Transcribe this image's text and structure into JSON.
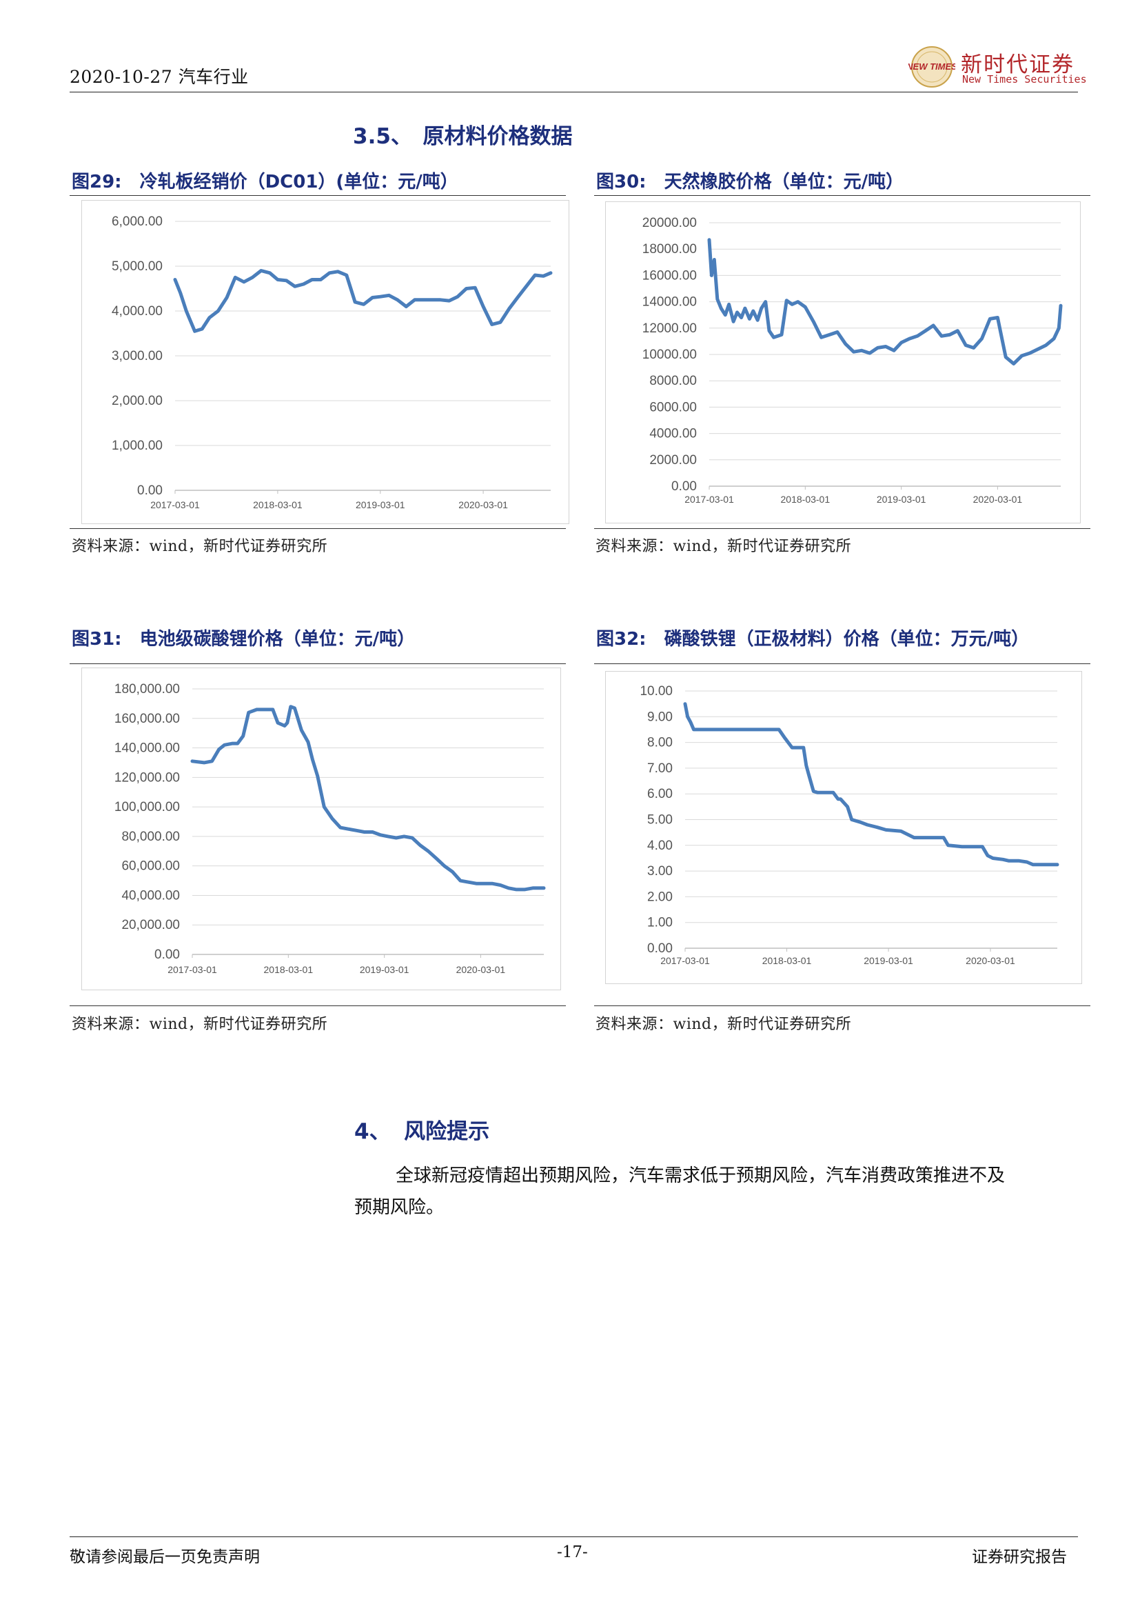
{
  "header": {
    "date_industry": "2020-10-27 汽车行业",
    "logo_name": "新时代证券",
    "logo_sub": "New Times Securities",
    "logo_mark": "NEW TIMES"
  },
  "section_35": {
    "num": "3.5、",
    "title": "原材料价格数据"
  },
  "fig29": {
    "title": "图29:　冷轧板经销价（DC01）(单位：元/吨）",
    "source": "资料来源：wind，新时代证券研究所"
  },
  "fig30": {
    "title": "图30:　天然橡胶价格（单位：元/吨）",
    "source": "资料来源：wind，新时代证券研究所"
  },
  "fig31": {
    "title": "图31:　电池级碳酸锂价格（单位：元/吨）",
    "source": "资料来源：wind，新时代证券研究所"
  },
  "fig32": {
    "title": "图32:　磷酸铁锂（正极材料）价格（单位：万元/吨）",
    "source": "资料来源：wind，新时代证券研究所"
  },
  "section_4": {
    "num": "4、",
    "title": "风险提示",
    "para_line1": "全球新冠疫情超出预期风险，汽车需求低于预期风险，汽车消费政策推进不及",
    "para_line2": "预期风险。"
  },
  "footer": {
    "left": "敬请参阅最后一页免责声明",
    "page": "-17-",
    "right": "证券研究报告"
  },
  "chart_data": [
    {
      "id": "fig29",
      "type": "line",
      "color": "#4a7ebb",
      "x_ticks": [
        "2017-03-01",
        "2018-03-01",
        "2019-03-01",
        "2020-03-01"
      ],
      "x_range": [
        "2017-03-01",
        "2020-10-27"
      ],
      "y_ticks": [
        "0.00",
        "1,000.00",
        "2,000.00",
        "3,000.00",
        "4,000.00",
        "5,000.00",
        "6,000.00"
      ],
      "ylim": [
        0,
        6000
      ],
      "grid": true,
      "series": [
        {
          "x": [
            "2017-03-01",
            "2017-03-20",
            "2017-04-10",
            "2017-05-10",
            "2017-06-05",
            "2017-07-01",
            "2017-08-01",
            "2017-09-01",
            "2017-10-01",
            "2017-11-01",
            "2017-12-01",
            "2018-01-01",
            "2018-02-01",
            "2018-03-01",
            "2018-04-01",
            "2018-05-01",
            "2018-06-01",
            "2018-07-01",
            "2018-08-01",
            "2018-09-01",
            "2018-10-01",
            "2018-11-01",
            "2018-12-01",
            "2019-01-01",
            "2019-02-01",
            "2019-03-01",
            "2019-04-01",
            "2019-05-01",
            "2019-06-01",
            "2019-07-01",
            "2019-08-01",
            "2019-09-01",
            "2019-10-01",
            "2019-11-01",
            "2019-12-01",
            "2020-01-01",
            "2020-02-01",
            "2020-03-01",
            "2020-04-01",
            "2020-05-01",
            "2020-06-01",
            "2020-07-01",
            "2020-08-01",
            "2020-09-01",
            "2020-10-01",
            "2020-10-27"
          ],
          "values": [
            4700,
            4400,
            4000,
            3550,
            3600,
            3850,
            4000,
            4300,
            4750,
            4650,
            4750,
            4900,
            4850,
            4700,
            4680,
            4550,
            4600,
            4700,
            4700,
            4850,
            4880,
            4800,
            4200,
            4150,
            4300,
            4320,
            4350,
            4250,
            4100,
            4250,
            4250,
            4250,
            4250,
            4230,
            4320,
            4500,
            4520,
            4100,
            3700,
            3750,
            4050,
            4300,
            4550,
            4800,
            4780,
            4850
          ]
        }
      ]
    },
    {
      "id": "fig30",
      "type": "line",
      "color": "#4a7ebb",
      "x_ticks": [
        "2017-03-01",
        "2018-03-01",
        "2019-03-01",
        "2020-03-01"
      ],
      "x_range": [
        "2017-03-01",
        "2020-10-27"
      ],
      "y_ticks": [
        "0.00",
        "2000.00",
        "4000.00",
        "6000.00",
        "8000.00",
        "10000.00",
        "12000.00",
        "14000.00",
        "16000.00",
        "18000.00",
        "20000.00"
      ],
      "ylim": [
        0,
        20000
      ],
      "grid": true,
      "series": [
        {
          "x": [
            "2017-03-01",
            "2017-03-10",
            "2017-03-20",
            "2017-04-01",
            "2017-04-15",
            "2017-05-01",
            "2017-05-15",
            "2017-06-01",
            "2017-06-15",
            "2017-07-01",
            "2017-07-15",
            "2017-08-01",
            "2017-08-15",
            "2017-09-01",
            "2017-09-15",
            "2017-10-01",
            "2017-10-15",
            "2017-11-01",
            "2017-12-01",
            "2017-12-20",
            "2018-01-10",
            "2018-02-01",
            "2018-03-01",
            "2018-04-01",
            "2018-05-01",
            "2018-06-01",
            "2018-07-01",
            "2018-08-01",
            "2018-09-01",
            "2018-10-01",
            "2018-11-01",
            "2018-12-01",
            "2019-01-01",
            "2019-02-01",
            "2019-03-01",
            "2019-04-01",
            "2019-05-01",
            "2019-06-01",
            "2019-07-01",
            "2019-08-01",
            "2019-09-01",
            "2019-10-01",
            "2019-11-01",
            "2019-12-01",
            "2020-01-01",
            "2020-02-01",
            "2020-03-01",
            "2020-04-01",
            "2020-05-01",
            "2020-06-01",
            "2020-07-01",
            "2020-08-01",
            "2020-09-01",
            "2020-10-01",
            "2020-10-20",
            "2020-10-27"
          ],
          "values": [
            18700,
            16000,
            17200,
            14200,
            13500,
            13000,
            13800,
            12500,
            13200,
            12800,
            13500,
            12700,
            13300,
            12600,
            13500,
            14000,
            11800,
            11300,
            11500,
            14100,
            13800,
            14000,
            13600,
            12500,
            11300,
            11500,
            11700,
            10800,
            10200,
            10300,
            10100,
            10500,
            10600,
            10300,
            10900,
            11200,
            11400,
            11800,
            12200,
            11400,
            11500,
            11800,
            10700,
            10500,
            11200,
            12700,
            12800,
            9800,
            9300,
            9900,
            10100,
            10400,
            10700,
            11200,
            12000,
            13700
          ]
        }
      ]
    },
    {
      "id": "fig31",
      "type": "line",
      "color": "#4a7ebb",
      "x_ticks": [
        "2017-03-01",
        "2018-03-01",
        "2019-03-01",
        "2020-03-01"
      ],
      "x_range": [
        "2017-03-01",
        "2020-10-27"
      ],
      "y_ticks": [
        "0.00",
        "20,000.00",
        "40,000.00",
        "60,000.00",
        "80,000.00",
        "100,000.00",
        "120,000.00",
        "140,000.00",
        "160,000.00",
        "180,000.00"
      ],
      "ylim": [
        0,
        180000
      ],
      "grid": true,
      "series": [
        {
          "x": [
            "2017-03-01",
            "2017-04-15",
            "2017-05-15",
            "2017-06-10",
            "2017-07-01",
            "2017-08-01",
            "2017-08-20",
            "2017-09-10",
            "2017-10-01",
            "2017-11-01",
            "2017-12-01",
            "2018-01-01",
            "2018-01-20",
            "2018-02-15",
            "2018-02-25",
            "2018-03-10",
            "2018-03-25",
            "2018-04-20",
            "2018-05-15",
            "2018-06-01",
            "2018-06-20",
            "2018-07-15",
            "2018-08-15",
            "2018-09-15",
            "2018-10-15",
            "2018-11-15",
            "2018-12-15",
            "2019-01-15",
            "2019-02-15",
            "2019-03-15",
            "2019-04-15",
            "2019-05-15",
            "2019-06-15",
            "2019-07-15",
            "2019-08-15",
            "2019-09-15",
            "2019-10-15",
            "2019-11-15",
            "2019-12-15",
            "2020-01-15",
            "2020-02-15",
            "2020-03-15",
            "2020-04-15",
            "2020-05-15",
            "2020-06-15",
            "2020-07-15",
            "2020-08-15",
            "2020-09-15",
            "2020-10-27"
          ],
          "values": [
            131000,
            130000,
            131000,
            139000,
            142000,
            143000,
            143000,
            148000,
            164000,
            166000,
            166000,
            166000,
            157000,
            155000,
            157000,
            168000,
            167000,
            152000,
            144000,
            132000,
            121000,
            100000,
            92000,
            86000,
            85000,
            84000,
            83000,
            83000,
            81000,
            80000,
            79000,
            80000,
            79000,
            74000,
            70000,
            65000,
            60000,
            56000,
            50000,
            49000,
            48000,
            48000,
            48000,
            47000,
            45000,
            44000,
            44000,
            45000,
            45000
          ]
        }
      ]
    },
    {
      "id": "fig32",
      "type": "line",
      "color": "#4a7ebb",
      "x_ticks": [
        "2017-03-01",
        "2018-03-01",
        "2019-03-01",
        "2020-03-01"
      ],
      "x_range": [
        "2017-03-01",
        "2020-10-27"
      ],
      "y_ticks": [
        "0.00",
        "1.00",
        "2.00",
        "3.00",
        "4.00",
        "5.00",
        "6.00",
        "7.00",
        "8.00",
        "9.00",
        "10.00"
      ],
      "ylim": [
        0,
        10
      ],
      "grid": true,
      "series": [
        {
          "x": [
            "2017-03-01",
            "2017-03-10",
            "2017-03-20",
            "2017-04-01",
            "2018-02-01",
            "2018-02-20",
            "2018-03-20",
            "2018-04-15",
            "2018-04-30",
            "2018-05-10",
            "2018-05-20",
            "2018-06-05",
            "2018-06-20",
            "2018-08-15",
            "2018-09-01",
            "2018-09-10",
            "2018-10-05",
            "2018-10-20",
            "2018-11-20",
            "2018-12-15",
            "2019-01-20",
            "2019-02-20",
            "2019-04-15",
            "2019-06-01",
            "2019-07-15",
            "2019-08-01",
            "2019-09-15",
            "2019-10-01",
            "2019-11-20",
            "2020-01-01",
            "2020-01-15",
            "2020-02-01",
            "2020-02-20",
            "2020-03-10",
            "2020-04-15",
            "2020-05-05",
            "2020-05-20",
            "2020-06-10",
            "2020-07-10",
            "2020-08-01",
            "2020-10-27"
          ],
          "values": [
            9.5,
            9.0,
            8.8,
            8.5,
            8.5,
            8.2,
            7.8,
            7.8,
            7.8,
            7.1,
            6.7,
            6.1,
            6.05,
            6.05,
            5.8,
            5.8,
            5.5,
            5.0,
            4.9,
            4.8,
            4.7,
            4.6,
            4.55,
            4.3,
            4.3,
            4.3,
            4.3,
            4.0,
            3.95,
            3.95,
            3.95,
            3.95,
            3.6,
            3.5,
            3.45,
            3.4,
            3.4,
            3.4,
            3.35,
            3.25,
            3.25
          ]
        }
      ]
    }
  ]
}
